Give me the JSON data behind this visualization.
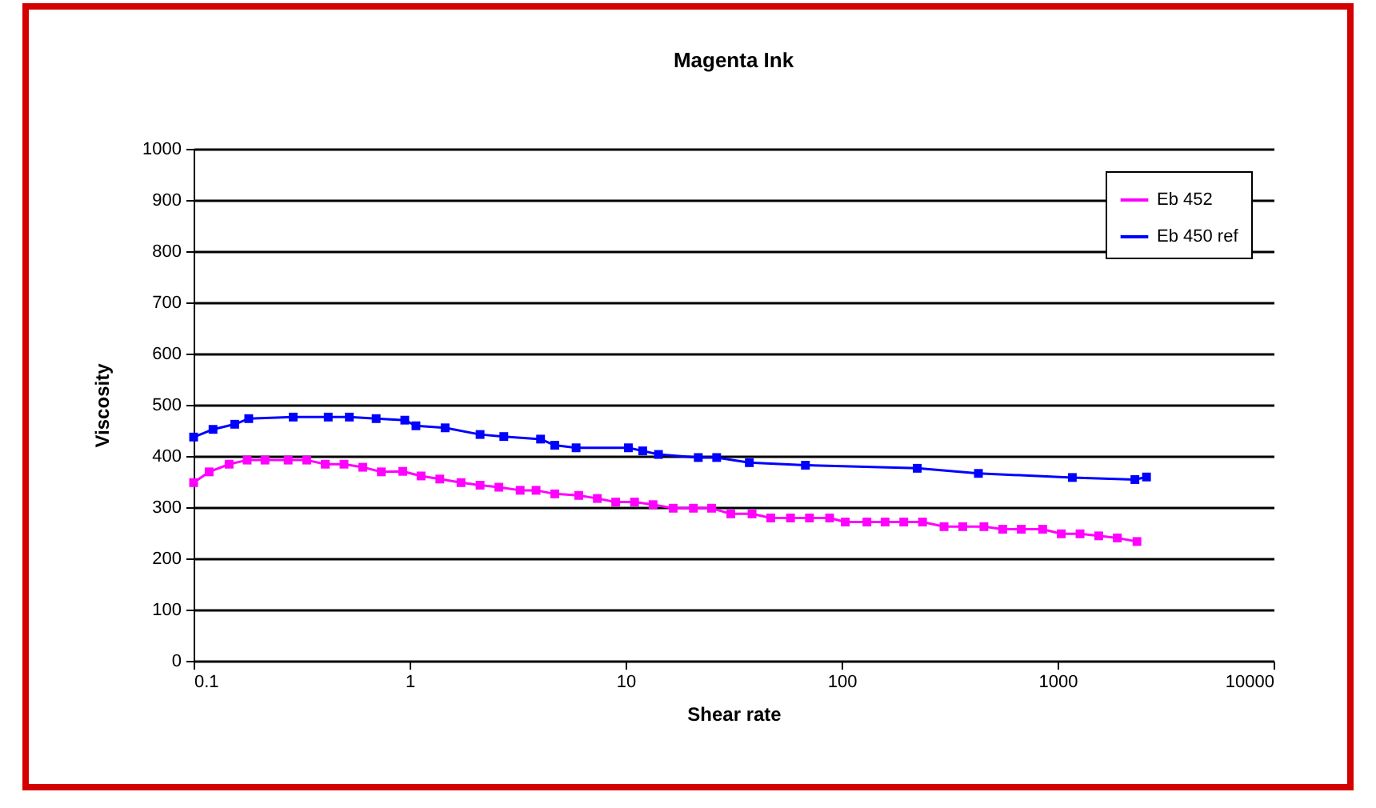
{
  "chart_data": {
    "type": "line",
    "title": "Magenta Ink",
    "xlabel": "Shear rate",
    "ylabel": "Viscosity",
    "log": "x",
    "xlim": [
      0.1,
      10000
    ],
    "xticks": [
      0.1,
      1,
      10,
      100,
      1000,
      10000
    ],
    "ylim": [
      0,
      1000
    ],
    "yticks": [
      0,
      100,
      200,
      300,
      400,
      500,
      600,
      700,
      800,
      900,
      1000
    ],
    "grid": "y",
    "legend": "top right",
    "marker": "square",
    "line_style": "solid",
    "series": [
      {
        "name": "Eb 452",
        "color": "#ff00ff",
        "x": [
          0.1,
          0.118,
          0.146,
          0.177,
          0.214,
          0.274,
          0.334,
          0.407,
          0.497,
          0.607,
          0.74,
          0.93,
          1.13,
          1.38,
          1.73,
          2.12,
          2.59,
          3.25,
          3.85,
          4.7,
          6.07,
          7.4,
          9.0,
          11,
          13.4,
          16.6,
          20.6,
          25,
          30.7,
          38.5,
          47,
          58,
          71,
          88,
          104,
          131,
          159,
          194,
          237,
          298,
          364,
          456,
          557,
          679,
          853,
          1040,
          1270,
          1550,
          1890,
          2330
        ],
        "values": [
          348,
          369,
          384,
          392,
          392,
          392,
          392,
          384,
          384,
          378,
          369,
          370,
          361,
          355,
          348,
          343,
          339,
          333,
          333,
          326,
          323,
          317,
          310,
          310,
          305,
          298,
          298,
          298,
          287,
          287,
          279,
          279,
          279,
          279,
          271,
          271,
          271,
          271,
          271,
          262,
          262,
          262,
          257,
          257,
          257,
          248,
          248,
          244,
          240,
          233
        ]
      },
      {
        "name": "Eb 450 ref",
        "color": "#0000ff",
        "x": [
          0.1,
          0.123,
          0.155,
          0.18,
          0.289,
          0.42,
          0.526,
          0.7,
          0.95,
          1.07,
          1.46,
          2.12,
          2.73,
          4.04,
          4.7,
          5.9,
          10.3,
          12.0,
          14.2,
          21.7,
          26.4,
          37.4,
          68,
          224,
          430,
          1170,
          2280,
          2580
        ],
        "values": [
          437,
          452,
          462,
          473,
          476,
          476,
          476,
          473,
          470,
          459,
          455,
          442,
          438,
          433,
          421,
          416,
          416,
          410,
          403,
          397,
          397,
          387,
          382,
          376,
          366,
          358,
          354,
          359
        ]
      }
    ]
  }
}
